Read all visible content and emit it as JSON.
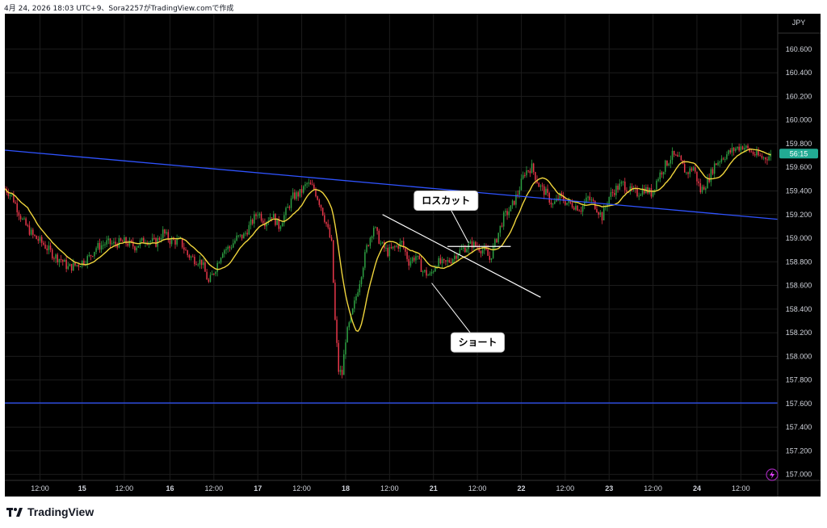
{
  "header": {
    "caption": "4月 24, 2026 18:03 UTC+9、Sora2257がTradingView.comで作成"
  },
  "brand": {
    "name": "TradingView",
    "logo_icon": "tradingview-logo-icon"
  },
  "colors": {
    "background": "#000000",
    "up_candle": "#2ea043",
    "down_candle": "#e8374a",
    "moving_average": "#f0d53c",
    "trend_lines": "#2f53ff",
    "annotation_lines": "#ffffff",
    "price_badge": "#22ab94"
  },
  "chart_data": {
    "type": "candlestick",
    "symbol_currency": "JPY",
    "current_price_label": "56:15",
    "ylim": [
      156.95,
      160.9
    ],
    "xlim": [
      0,
      440
    ],
    "y_ticks": [
      "160.600",
      "160.400",
      "160.200",
      "160.000",
      "159.800",
      "159.600",
      "159.400",
      "159.200",
      "159.000",
      "158.800",
      "158.600",
      "158.400",
      "158.200",
      "158.000",
      "157.800",
      "157.600",
      "157.400",
      "157.200",
      "157.000"
    ],
    "x_ticks": [
      {
        "x": 20,
        "label": "12:00"
      },
      {
        "x": 44,
        "label": "15"
      },
      {
        "x": 68,
        "label": "12:00"
      },
      {
        "x": 94,
        "label": "16"
      },
      {
        "x": 119,
        "label": "12:00"
      },
      {
        "x": 144,
        "label": "17"
      },
      {
        "x": 169,
        "label": "12:00"
      },
      {
        "x": 194,
        "label": "18"
      },
      {
        "x": 219,
        "label": "12:00"
      },
      {
        "x": 244,
        "label": "21"
      },
      {
        "x": 269,
        "label": "12:00"
      },
      {
        "x": 294,
        "label": "22"
      },
      {
        "x": 319,
        "label": "12:00"
      },
      {
        "x": 344,
        "label": "23"
      },
      {
        "x": 369,
        "label": "12:00"
      },
      {
        "x": 394,
        "label": "24"
      },
      {
        "x": 419,
        "label": "12:00"
      }
    ],
    "price_path": [
      [
        0,
        159.42
      ],
      [
        4,
        159.36
      ],
      [
        10,
        159.15
      ],
      [
        16,
        159.02
      ],
      [
        22,
        158.95
      ],
      [
        28,
        158.85
      ],
      [
        32,
        158.82
      ],
      [
        36,
        158.75
      ],
      [
        42,
        158.78
      ],
      [
        48,
        158.84
      ],
      [
        52,
        158.92
      ],
      [
        58,
        158.96
      ],
      [
        62,
        158.95
      ],
      [
        68,
        158.97
      ],
      [
        74,
        158.93
      ],
      [
        80,
        158.99
      ],
      [
        86,
        158.96
      ],
      [
        90,
        159.05
      ],
      [
        94,
        158.98
      ],
      [
        100,
        158.97
      ],
      [
        104,
        158.86
      ],
      [
        108,
        158.82
      ],
      [
        112,
        158.8
      ],
      [
        116,
        158.62
      ],
      [
        120,
        158.75
      ],
      [
        124,
        158.9
      ],
      [
        128,
        158.92
      ],
      [
        132,
        159.0
      ],
      [
        136,
        159.02
      ],
      [
        140,
        159.12
      ],
      [
        144,
        159.22
      ],
      [
        148,
        159.14
      ],
      [
        152,
        159.2
      ],
      [
        156,
        159.1
      ],
      [
        160,
        159.22
      ],
      [
        164,
        159.35
      ],
      [
        168,
        159.38
      ],
      [
        172,
        159.46
      ],
      [
        176,
        159.42
      ],
      [
        180,
        159.27
      ],
      [
        183,
        159.12
      ],
      [
        186,
        158.95
      ],
      [
        188,
        158.3
      ],
      [
        190,
        157.88
      ],
      [
        192,
        157.85
      ],
      [
        194,
        158.15
      ],
      [
        198,
        158.38
      ],
      [
        202,
        158.64
      ],
      [
        206,
        158.92
      ],
      [
        210,
        159.1
      ],
      [
        214,
        158.95
      ],
      [
        218,
        158.88
      ],
      [
        222,
        158.92
      ],
      [
        226,
        158.96
      ],
      [
        230,
        158.8
      ],
      [
        234,
        158.85
      ],
      [
        238,
        158.72
      ],
      [
        242,
        158.68
      ],
      [
        246,
        158.8
      ],
      [
        250,
        158.78
      ],
      [
        254,
        158.82
      ],
      [
        258,
        158.88
      ],
      [
        262,
        158.92
      ],
      [
        266,
        158.95
      ],
      [
        270,
        158.92
      ],
      [
        274,
        158.88
      ],
      [
        276,
        158.82
      ],
      [
        280,
        159.0
      ],
      [
        284,
        159.18
      ],
      [
        288,
        159.25
      ],
      [
        292,
        159.38
      ],
      [
        296,
        159.56
      ],
      [
        300,
        159.6
      ],
      [
        304,
        159.45
      ],
      [
        308,
        159.38
      ],
      [
        312,
        159.28
      ],
      [
        316,
        159.35
      ],
      [
        320,
        159.3
      ],
      [
        324,
        159.28
      ],
      [
        328,
        159.25
      ],
      [
        332,
        159.34
      ],
      [
        336,
        159.28
      ],
      [
        340,
        159.18
      ],
      [
        344,
        159.35
      ],
      [
        348,
        159.42
      ],
      [
        352,
        159.46
      ],
      [
        356,
        159.4
      ],
      [
        360,
        159.38
      ],
      [
        364,
        159.42
      ],
      [
        368,
        159.38
      ],
      [
        372,
        159.52
      ],
      [
        376,
        159.62
      ],
      [
        380,
        159.7
      ],
      [
        384,
        159.66
      ],
      [
        388,
        159.55
      ],
      [
        392,
        159.6
      ],
      [
        396,
        159.4
      ],
      [
        400,
        159.48
      ],
      [
        404,
        159.62
      ],
      [
        408,
        159.68
      ],
      [
        412,
        159.72
      ],
      [
        416,
        159.76
      ],
      [
        420,
        159.78
      ],
      [
        424,
        159.74
      ],
      [
        428,
        159.7
      ],
      [
        432,
        159.68
      ],
      [
        436,
        159.7
      ]
    ],
    "horizontal_support": 157.605,
    "upper_trendline": {
      "from": [
        0,
        159.745
      ],
      "to": [
        440,
        159.16
      ]
    },
    "wedge_upper_line": {
      "from": [
        215,
        159.2
      ],
      "to": [
        305,
        158.5
      ]
    },
    "wedge_lower_line": {
      "from": [
        252,
        158.93
      ],
      "to": [
        288,
        158.93
      ]
    },
    "annotations": [
      {
        "label": "ロスカット",
        "anchor": [
          264,
          158.96
        ],
        "box": [
          233,
          159.4
        ]
      },
      {
        "label": "ショート",
        "anchor": [
          243,
          158.62
        ],
        "box": [
          254,
          158.2
        ]
      }
    ]
  }
}
